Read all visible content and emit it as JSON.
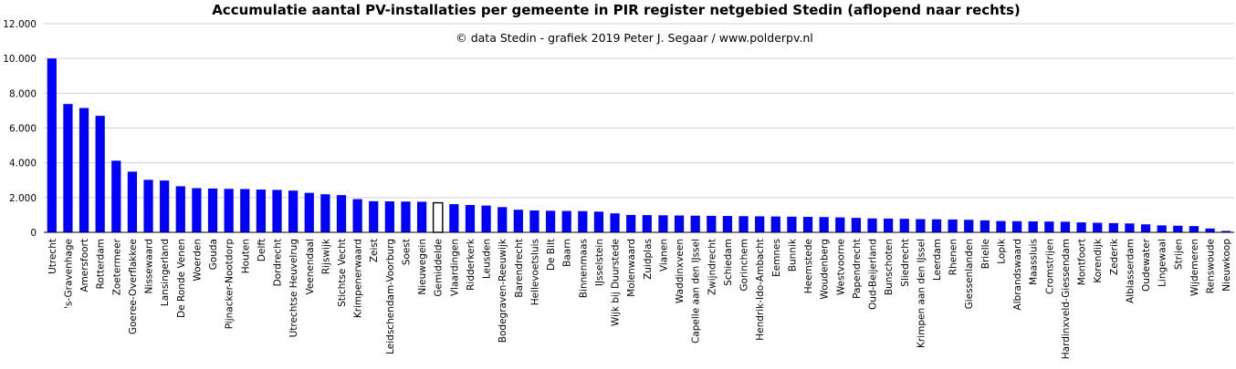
{
  "chart_data": {
    "type": "bar",
    "title": "Accumulatie  aantal PV-installaties  per gemeente in PIR register netgebied Stedin (aflopend naar rechts)",
    "subtitle": "© data Stedin - grafiek  2019 Peter J. Segaar / www.polderpv.nl",
    "xlabel": "",
    "ylabel": "",
    "ylim": [
      0,
      12000
    ],
    "yticks": [
      0,
      2000,
      4000,
      6000,
      8000,
      10000,
      12000
    ],
    "ytick_labels": [
      "0",
      "2.000",
      "4.000",
      "6.000",
      "8.000",
      "10.000",
      "12.000"
    ],
    "grid": true,
    "legend": "none",
    "bar_color": "#0000ff",
    "highlight_color": "#ffffff",
    "highlight_category": "Gemiddelde",
    "categories": [
      "Utrecht",
      "'s-Gravenhage",
      "Amersfoort",
      "Rotterdam",
      "Zoetermeer",
      "Goeree-Overflakkee",
      "Nissewaard",
      "Lansingerland",
      "De Ronde Venen",
      "Woerden",
      "Gouda",
      "Pijnacker-Nootdorp",
      "Houten",
      "Delft",
      "Dordrecht",
      "Utrechtse Heuvelrug",
      "Veenendaal",
      "Rijswijk",
      "Stichtse Vecht",
      "Krimpenerwaard",
      "Zeist",
      "Leidschendam-Voorburg",
      "Soest",
      "Nieuwegein",
      "Gemiddelde",
      "Vlaardingen",
      "Ridderkerk",
      "Leusden",
      "Bodegraven-Reeuwijk",
      "Barendrecht",
      "Hellevoetsluis",
      "De Bilt",
      "Baarn",
      "Binnenmaas",
      "IJsselstein",
      "Wijk bij Duurstede",
      "Molenwaard",
      "Zuidplas",
      "Vianen",
      "Waddinxveen",
      "Capelle aan den IJssel",
      "Zwijndrecht",
      "Schiedam",
      "Gorinchem",
      "Hendrik-Ido-Ambacht",
      "Eemnes",
      "Bunnik",
      "Heemstede",
      "Woudenberg",
      "Westvoorne",
      "Papendrecht",
      "Oud-Beijerland",
      "Bunschoten",
      "Sliedrecht",
      "Krimpen aan den IJssel",
      "Leerdam",
      "Rhenen",
      "Giessenlanden",
      "Brielle",
      "Lopik",
      "Albrandswaard",
      "Maassluis",
      "Cromstrijen",
      "Hardinxveld-Giessendam",
      "Montfoort",
      "Korendijk",
      "Zederik",
      "Alblasserdam",
      "Oudewater",
      "Lingewaal",
      "Strijen",
      "Wijdemeren",
      "Renswoude",
      "Nieuwkoop"
    ],
    "values": [
      10000,
      7380,
      7150,
      6700,
      4120,
      3490,
      3020,
      2980,
      2650,
      2540,
      2520,
      2500,
      2490,
      2460,
      2440,
      2400,
      2270,
      2190,
      2140,
      1910,
      1790,
      1780,
      1770,
      1760,
      1700,
      1620,
      1570,
      1540,
      1450,
      1300,
      1260,
      1240,
      1230,
      1220,
      1190,
      1090,
      1000,
      990,
      980,
      970,
      960,
      950,
      940,
      930,
      920,
      910,
      900,
      890,
      880,
      860,
      830,
      800,
      790,
      780,
      760,
      750,
      740,
      720,
      690,
      650,
      640,
      630,
      620,
      610,
      570,
      550,
      530,
      510,
      460,
      400,
      380,
      360,
      220,
      80
    ]
  }
}
